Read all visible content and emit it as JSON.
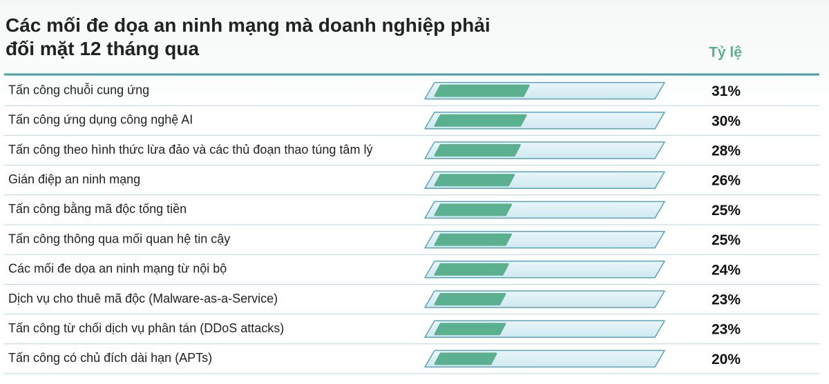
{
  "chart_data": {
    "type": "bar",
    "orientation": "horizontal",
    "title": "Các mối đe dọa an ninh mạng mà doanh nghiệp phải đối mặt 12 tháng qua",
    "value_header": "Tỷ lệ",
    "categories": [
      "Tấn công chuỗi cung ứng",
      "Tấn công ứng dụng công nghệ AI",
      "Tấn công theo hình thức lừa đảo và các thủ đoạn thao túng tâm lý",
      "Gián điệp an ninh mạng",
      "Tấn công bằng mã độc tống tiền",
      "Tấn công thông qua mối quan hệ tin cậy",
      "Các mối đe dọa an ninh mạng từ nội bộ",
      "Dịch vụ cho thuê mã độc (Malware-as-a-Service)",
      "Tấn công từ chối dịch vụ phân tán (DDoS attacks)",
      "Tấn công có chủ đích dài hạn (APTs)"
    ],
    "values": [
      31,
      30,
      28,
      26,
      25,
      25,
      24,
      23,
      23,
      20
    ],
    "value_labels": [
      "31%",
      "30%",
      "28%",
      "26%",
      "25%",
      "25%",
      "24%",
      "23%",
      "23%",
      "20%"
    ],
    "xlim": [
      0,
      77
    ],
    "color": "#5bb08f"
  }
}
